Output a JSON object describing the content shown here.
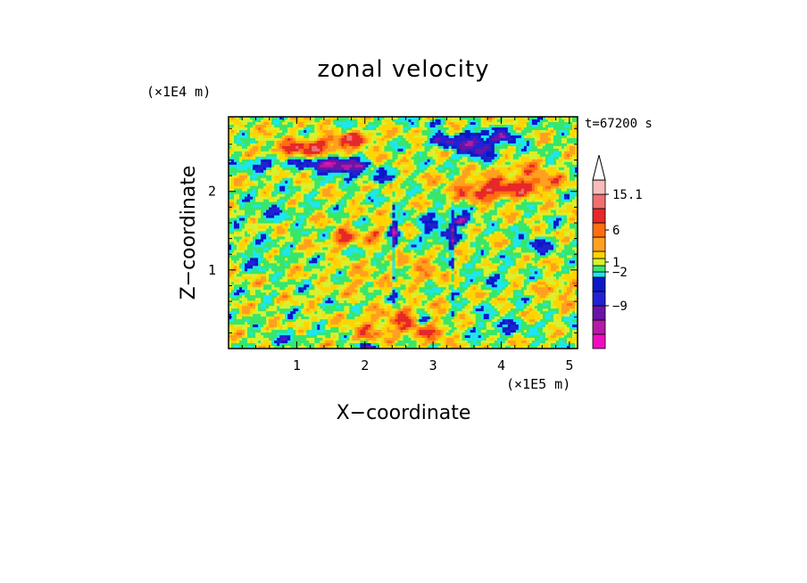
{
  "chart_data": {
    "type": "heatmap",
    "title": "zonal velocity",
    "xlabel": "X−coordinate",
    "ylabel": "Z−coordinate",
    "x_unit": "(×1E5 m)",
    "y_unit": "(×1E4 m)",
    "time_label": "t=67200 s",
    "xlim": [
      0,
      5.12
    ],
    "ylim": [
      0,
      2.95
    ],
    "x_ticks": [
      {
        "value": 1,
        "label": "1"
      },
      {
        "value": 2,
        "label": "2"
      },
      {
        "value": 3,
        "label": "3"
      },
      {
        "value": 4,
        "label": "4"
      },
      {
        "value": 5,
        "label": "5"
      }
    ],
    "y_ticks": [
      {
        "value": 1,
        "label": "1"
      },
      {
        "value": 2,
        "label": "2"
      }
    ],
    "colorbar": {
      "bins": [
        {
          "color": "#ee0cc0"
        },
        {
          "color": "#b41aa6"
        },
        {
          "color": "#6a14a6"
        },
        {
          "color": "#2222d2"
        },
        {
          "color": "#0b18c8"
        },
        {
          "color": "#1ee6f0"
        },
        {
          "color": "#38e66a"
        },
        {
          "color": "#d8f030"
        },
        {
          "color": "#ffd400"
        },
        {
          "color": "#ffa020"
        },
        {
          "color": "#ff6e10"
        },
        {
          "color": "#e62828"
        },
        {
          "color": "#f07070"
        },
        {
          "color": "#f8bcbc"
        }
      ],
      "labels": [
        {
          "value": "15.1",
          "bin_edge": 13
        },
        {
          "value": "6",
          "bin_edge": 10.5
        },
        {
          "value": "1",
          "bin_edge": 7.5
        },
        {
          "value": "−2",
          "bin_edge": 6
        },
        {
          "value": "−9",
          "bin_edge": 3
        }
      ],
      "extend": "max"
    }
  }
}
